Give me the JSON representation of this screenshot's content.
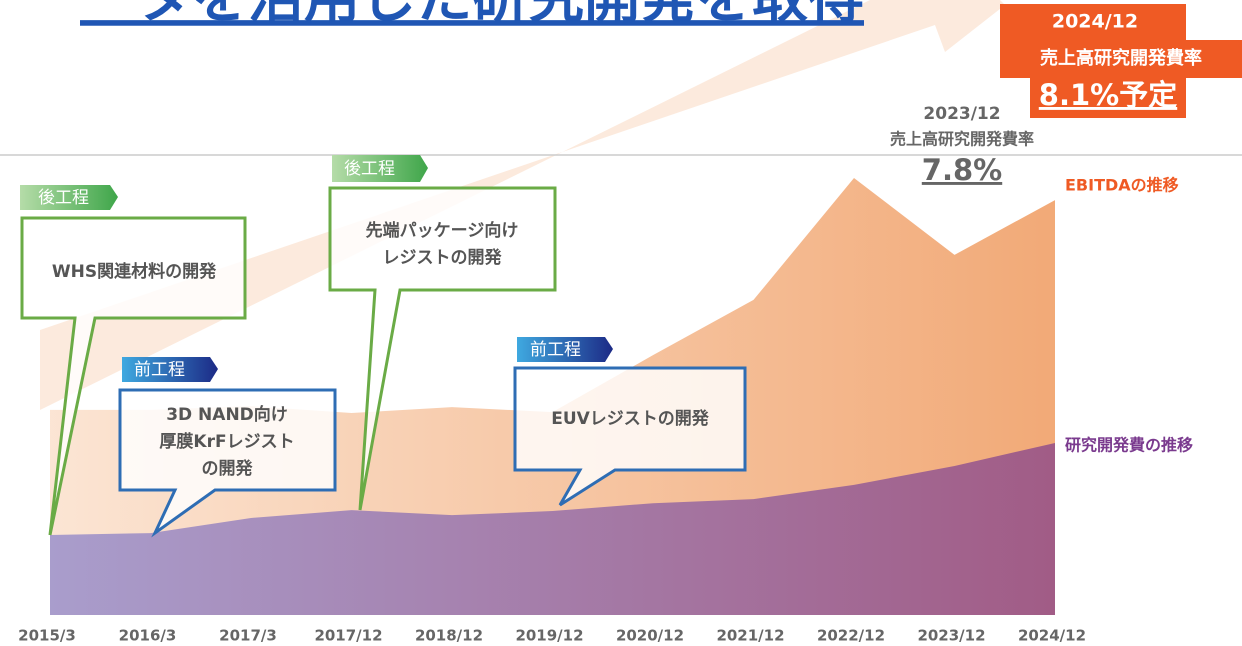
{
  "chart_data": {
    "type": "area",
    "title": "ータを活用した研究開発を取得",
    "categories": [
      "2015/3",
      "2016/3",
      "2017/3",
      "2017/12",
      "2018/12",
      "2019/12",
      "2020/12",
      "2021/12",
      "2022/12",
      "2023/12",
      "2024/12"
    ],
    "series": [
      {
        "name": "EBITDAの推移",
        "color": "#f0a068",
        "values": [
          44.6,
          44.6,
          45.4,
          43.9,
          45.2,
          44.1,
          56.5,
          68.5,
          95.0,
          78.3,
          90.2
        ]
      },
      {
        "name": "研究開発費の推移",
        "color": "#a15c86",
        "values": [
          17.4,
          17.8,
          21.1,
          22.8,
          21.7,
          22.6,
          24.3,
          25.2,
          28.3,
          32.4,
          37.4
        ]
      }
    ],
    "ylim": [
      0,
      100
    ],
    "annotations": {
      "ratio_2023": {
        "date": "2023/12",
        "label": "売上高研究開発費率",
        "value": "7.8%"
      },
      "ratio_2024": {
        "date": "2024/12",
        "label": "売上高研究開発費率",
        "value": "8.1%予定"
      },
      "callouts": [
        {
          "tag": "後工程",
          "lines": [
            "WHS関連材料の開発"
          ]
        },
        {
          "tag": "前工程",
          "lines": [
            "3D NAND向け",
            "厚膜KrFレジスト",
            "の開発"
          ]
        },
        {
          "tag": "後工程",
          "lines": [
            "先端パッケージ向け",
            "レジストの開発"
          ]
        },
        {
          "tag": "前工程",
          "lines": [
            "EUVレジストの開発"
          ]
        }
      ]
    }
  }
}
